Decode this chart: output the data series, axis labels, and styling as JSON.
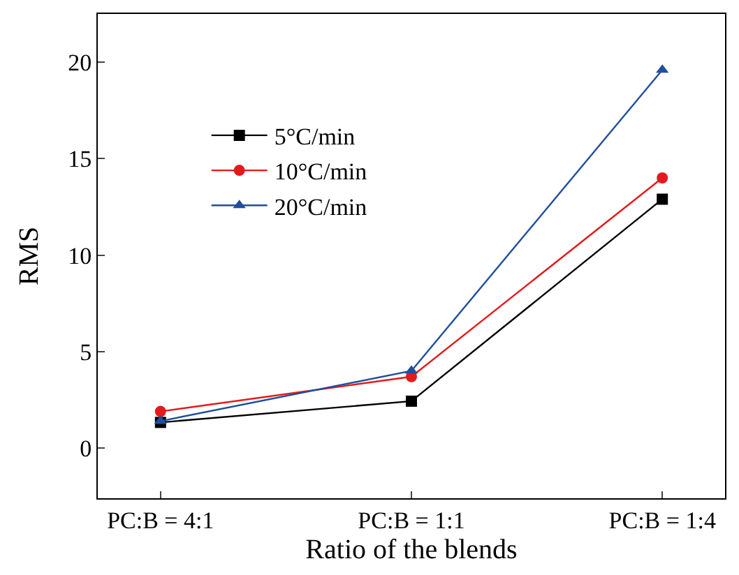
{
  "chart_data": {
    "type": "line",
    "xlabel": "Ratio of the blends",
    "ylabel": "RMS",
    "categories": [
      "PC:B = 4:1",
      "PC:B = 1:1",
      "PC:B = 1:4"
    ],
    "series": [
      {
        "name": "5°C/min",
        "color": "#000000",
        "marker": "square",
        "values": [
          1.33,
          2.43,
          12.9
        ]
      },
      {
        "name": "10°C/min",
        "color": "#e31a1c",
        "marker": "circle",
        "values": [
          1.9,
          3.7,
          14.0
        ]
      },
      {
        "name": "20°C/min",
        "color": "#1f4e9c",
        "marker": "triangle",
        "values": [
          1.4,
          4.0,
          19.6
        ]
      }
    ],
    "ylim": [
      -2.6,
      22.5
    ],
    "yticks": [
      0,
      5,
      10,
      15,
      20
    ],
    "legend": "top left",
    "line_style": "solid"
  }
}
